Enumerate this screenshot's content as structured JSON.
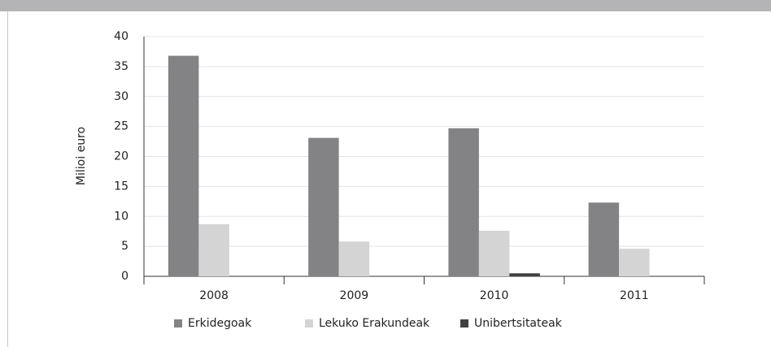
{
  "chart_data": {
    "type": "bar",
    "y_label": "Milioi euro",
    "categories": [
      "2008",
      "2009",
      "2010",
      "2011"
    ],
    "series": [
      {
        "name": "Erkidegoak",
        "color": "#838385",
        "values": [
          36.8,
          23.1,
          24.7,
          12.3
        ]
      },
      {
        "name": "Lekuko Erakundeak",
        "color": "#d4d4d5",
        "values": [
          8.7,
          5.8,
          7.6,
          4.6
        ]
      },
      {
        "name": "Unibertsitateak",
        "color": "#404040",
        "values": [
          0,
          0,
          0.5,
          0
        ]
      }
    ],
    "ylim": [
      0,
      40
    ],
    "yticks": [
      0,
      5,
      10,
      15,
      20,
      25,
      30,
      35,
      40
    ],
    "grid": true,
    "legend": "bottom"
  }
}
